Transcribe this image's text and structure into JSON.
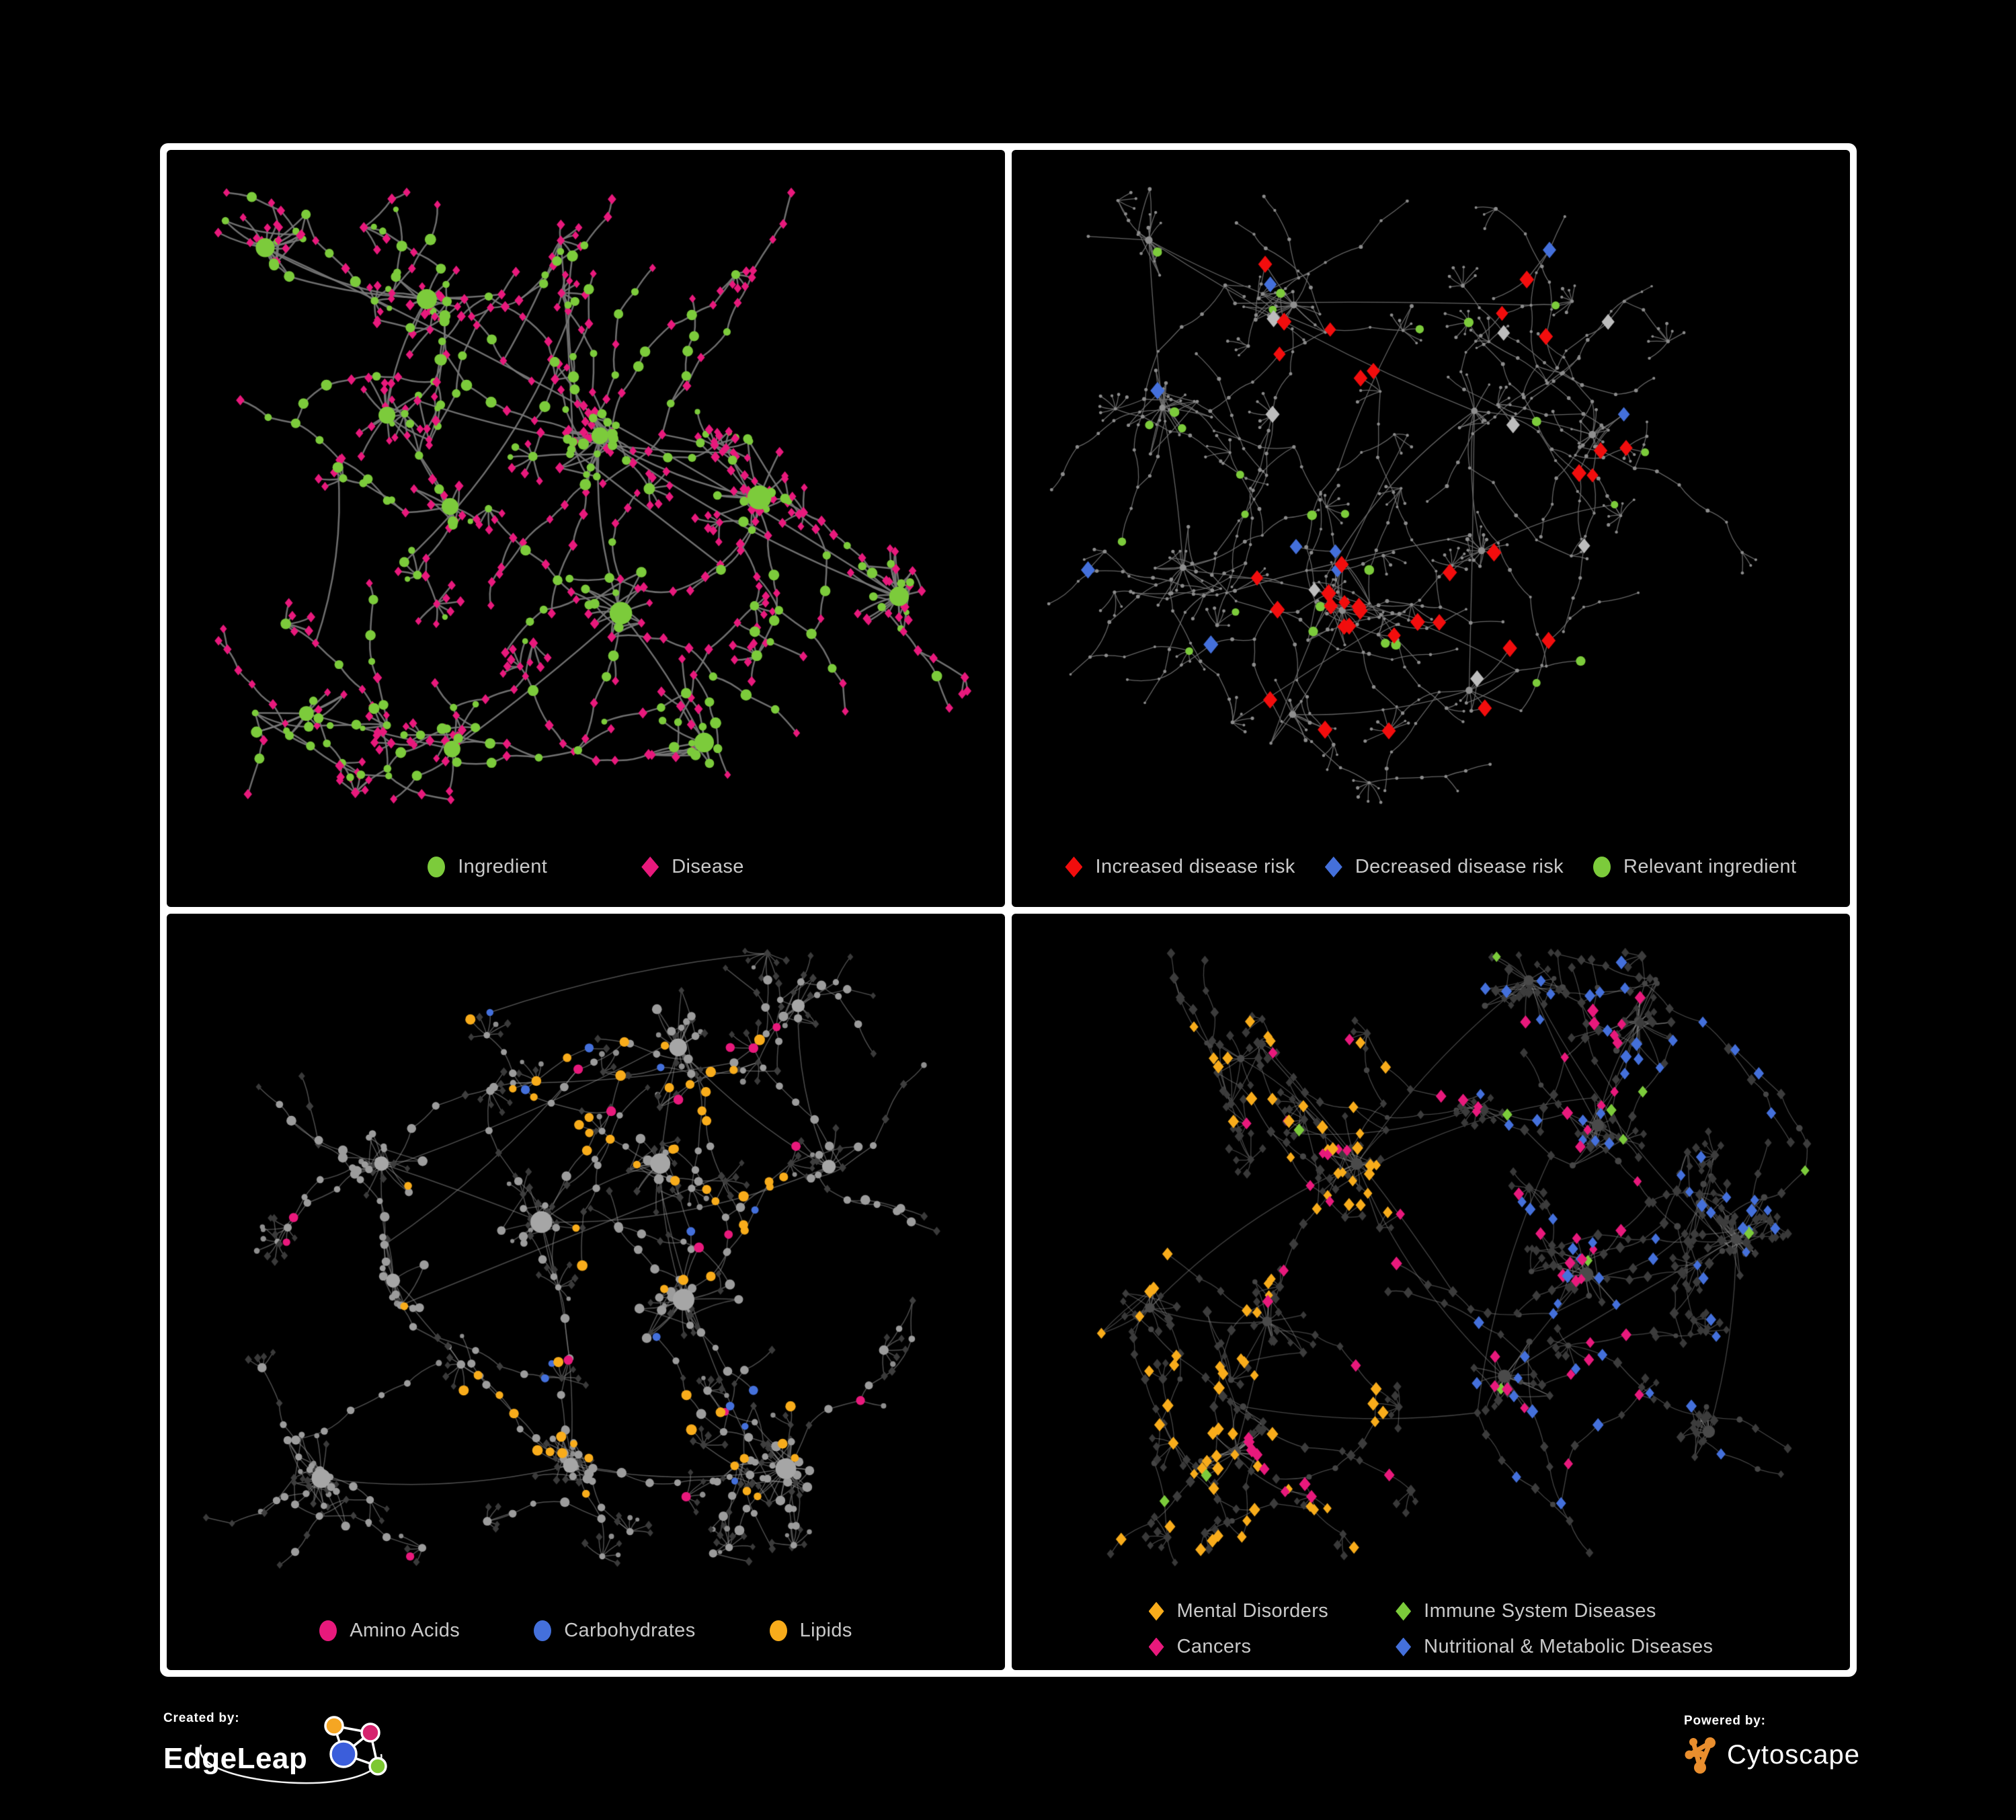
{
  "page": {
    "background": "#000000",
    "frame_color": "#ffffff"
  },
  "colors": {
    "green": "#7ccb3b",
    "pink": "#e8197c",
    "red": "#f20d0d",
    "blue": "#4470db",
    "orange": "#f8ac1b",
    "legend_text": "#c9c9c9"
  },
  "panels": [
    {
      "id": "ingredient-disease",
      "legend": [
        {
          "shape": "circle",
          "color": "#7ccb3b",
          "label": "Ingredient"
        },
        {
          "shape": "diamond",
          "color": "#e8197c",
          "label": "Disease"
        }
      ],
      "network": {
        "seed": 7,
        "nodes": 680,
        "hubs": 11,
        "clusterMin": 10,
        "clusterMax": 26,
        "burst": 0.5,
        "longEdges": 12,
        "edge": {
          "color": "#787878",
          "width": 2.5,
          "alpha": 0.92
        },
        "roles": {
          "hub": [
            {
              "shape": "circle",
              "color": "#7ccb3b",
              "rmin": 9,
              "rmax": 14,
              "w": 1
            }
          ],
          "internal": [
            {
              "shape": "circle",
              "color": "#7ccb3b",
              "rmin": 5,
              "rmax": 8.5,
              "w": 0.5
            },
            {
              "shape": "diamond",
              "color": "#e8197c",
              "rmin": 5.2,
              "rmax": 6.8,
              "w": 0.5
            }
          ],
          "leaf": [
            {
              "shape": "diamond",
              "color": "#e8197c",
              "rmin": 4.8,
              "rmax": 6.4,
              "w": 0.82
            },
            {
              "shape": "circle",
              "color": "#7ccb3b",
              "rmin": 4,
              "rmax": 6,
              "w": 0.18
            }
          ]
        },
        "overlays": []
      }
    },
    {
      "id": "disease-risk",
      "legend": [
        {
          "shape": "diamond",
          "color": "#f20d0d",
          "label": "Increased disease risk"
        },
        {
          "shape": "diamond",
          "color": "#4470db",
          "label": "Decreased disease risk"
        },
        {
          "shape": "circle",
          "color": "#7ccb3b",
          "label": "Relevant ingredient"
        }
      ],
      "network": {
        "seed": 13,
        "nodes": 720,
        "hubs": 10,
        "clusterMin": 8,
        "clusterMax": 20,
        "burst": 0.48,
        "longEdges": 10,
        "edge": {
          "color": "#6f6f6f",
          "width": 1.3,
          "alpha": 0.9
        },
        "roles": {
          "hub": [
            {
              "shape": "circle",
              "color": "#8f8f8f",
              "rmin": 3.2,
              "rmax": 4.6,
              "w": 1
            }
          ],
          "internal": [
            {
              "shape": "circle",
              "color": "#8c8c8c",
              "rmin": 2.0,
              "rmax": 3.0,
              "w": 1
            }
          ],
          "leaf": [
            {
              "shape": "circle",
              "color": "#8c8c8c",
              "rmin": 1.8,
              "rmax": 2.6,
              "w": 1
            }
          ]
        },
        "overlays": [
          {
            "shape": "diamond",
            "color": "#f20d0d",
            "count": 30,
            "rmin": 8.5,
            "rmax": 11,
            "bias": "center"
          },
          {
            "shape": "diamond",
            "color": "#f20d0d",
            "count": 4,
            "rmin": 8,
            "rmax": 10,
            "bias": "right"
          },
          {
            "shape": "diamond",
            "color": "#4470db",
            "count": 7,
            "rmin": 8.5,
            "rmax": 11,
            "bias": "left"
          },
          {
            "shape": "diamond",
            "color": "#4470db",
            "count": 2,
            "rmin": 8,
            "rmax": 10,
            "bias": "right"
          },
          {
            "shape": "diamond",
            "color": "#bdbdbd",
            "count": 8,
            "rmin": 8,
            "rmax": 10.5,
            "bias": "center"
          },
          {
            "shape": "circle",
            "color": "#7ccb3b",
            "count": 26,
            "rmin": 5.5,
            "rmax": 7.5,
            "bias": "center-wide"
          }
        ]
      }
    },
    {
      "id": "nutrient-classes",
      "legend": [
        {
          "shape": "circle",
          "color": "#e8197c",
          "label": "Amino Acids"
        },
        {
          "shape": "circle",
          "color": "#4470db",
          "label": "Carbohydrates"
        },
        {
          "shape": "circle",
          "color": "#f8ac1b",
          "label": "Lipids"
        }
      ],
      "network": {
        "seed": 21,
        "nodes": 700,
        "hubs": 11,
        "clusterMin": 10,
        "clusterMax": 24,
        "burst": 0.5,
        "longEdges": 10,
        "edge": {
          "color": "#9a9a9a",
          "width": 1.5,
          "alpha": 0.5
        },
        "roles": {
          "hub": [
            {
              "shape": "circle",
              "color": "#a6a6a6",
              "rmin": 8,
              "rmax": 13,
              "w": 1
            }
          ],
          "internal": [
            {
              "shape": "circle",
              "color": "#9c9c9c",
              "rmin": 4.5,
              "rmax": 7.5,
              "w": 0.72
            },
            {
              "shape": "diamond",
              "color": "#3e3e3e",
              "rmin": 4.2,
              "rmax": 5.6,
              "w": 0.28
            }
          ],
          "leaf": [
            {
              "shape": "diamond",
              "color": "#3a3a3a",
              "rmin": 4,
              "rmax": 5.4,
              "w": 0.72
            },
            {
              "shape": "circle",
              "color": "#8e8e8e",
              "rmin": 3,
              "rmax": 4.6,
              "w": 0.28
            }
          ]
        },
        "overlays": [
          {
            "shape": "circle",
            "color": "#f8ac1b",
            "count": 62,
            "rmin": 5.5,
            "rmax": 8,
            "bias": "center"
          },
          {
            "shape": "circle",
            "color": "#4470db",
            "count": 13,
            "rmin": 5,
            "rmax": 7,
            "bias": "center"
          },
          {
            "shape": "circle",
            "color": "#e8197c",
            "count": 16,
            "rmin": 5.5,
            "rmax": 7.5,
            "bias": "scatter"
          }
        ]
      }
    },
    {
      "id": "disease-classes",
      "legend": [
        {
          "shape": "diamond",
          "color": "#f8ac1b",
          "label": "Mental Disorders"
        },
        {
          "shape": "diamond",
          "color": "#7ccb3b",
          "label": "Immune System Diseases"
        },
        {
          "shape": "diamond",
          "color": "#e8197c",
          "label": "Cancers"
        },
        {
          "shape": "diamond",
          "color": "#4470db",
          "label": "Nutritional & Metabolic Diseases"
        }
      ],
      "network": {
        "seed": 29,
        "nodes": 780,
        "hubs": 12,
        "clusterMin": 10,
        "clusterMax": 24,
        "burst": 0.5,
        "longEdges": 10,
        "edge": {
          "color": "#969696",
          "width": 1.3,
          "alpha": 0.45
        },
        "roles": {
          "hub": [
            {
              "shape": "circle",
              "color": "#4a4a4a",
              "rmin": 4.5,
              "rmax": 8,
              "w": 1
            }
          ],
          "internal": [
            {
              "shape": "diamond",
              "color": "#3c3c3c",
              "rmin": 5,
              "rmax": 7,
              "w": 0.85
            },
            {
              "shape": "circle",
              "color": "#454545",
              "rmin": 3.5,
              "rmax": 5,
              "w": 0.15
            }
          ],
          "leaf": [
            {
              "shape": "diamond",
              "color": "#393939",
              "rmin": 4.5,
              "rmax": 6.2,
              "w": 1
            }
          ]
        },
        "overlays": [
          {
            "shape": "diamond",
            "color": "#f8ac1b",
            "count": 85,
            "rmin": 6,
            "rmax": 8.5,
            "bias": "left"
          },
          {
            "shape": "diamond",
            "color": "#e8197c",
            "count": 62,
            "rmin": 6,
            "rmax": 8.5,
            "bias": "center"
          },
          {
            "shape": "diamond",
            "color": "#4470db",
            "count": 72,
            "rmin": 6,
            "rmax": 8.5,
            "bias": "right"
          },
          {
            "shape": "diamond",
            "color": "#7ccb3b",
            "count": 12,
            "rmin": 6,
            "rmax": 8,
            "bias": "scatter"
          }
        ]
      }
    }
  ],
  "footer": {
    "created_by_label": "Created by:",
    "brand_left": "EdgeLeap",
    "powered_by_label": "Powered by:",
    "brand_right": "Cytoscape",
    "edgeleap_logo_colors": {
      "orange": "#f5a623",
      "pink": "#d6246e",
      "blue": "#3b5edb",
      "green": "#7dc832"
    },
    "cytoscape_color": "#e98e2e"
  }
}
